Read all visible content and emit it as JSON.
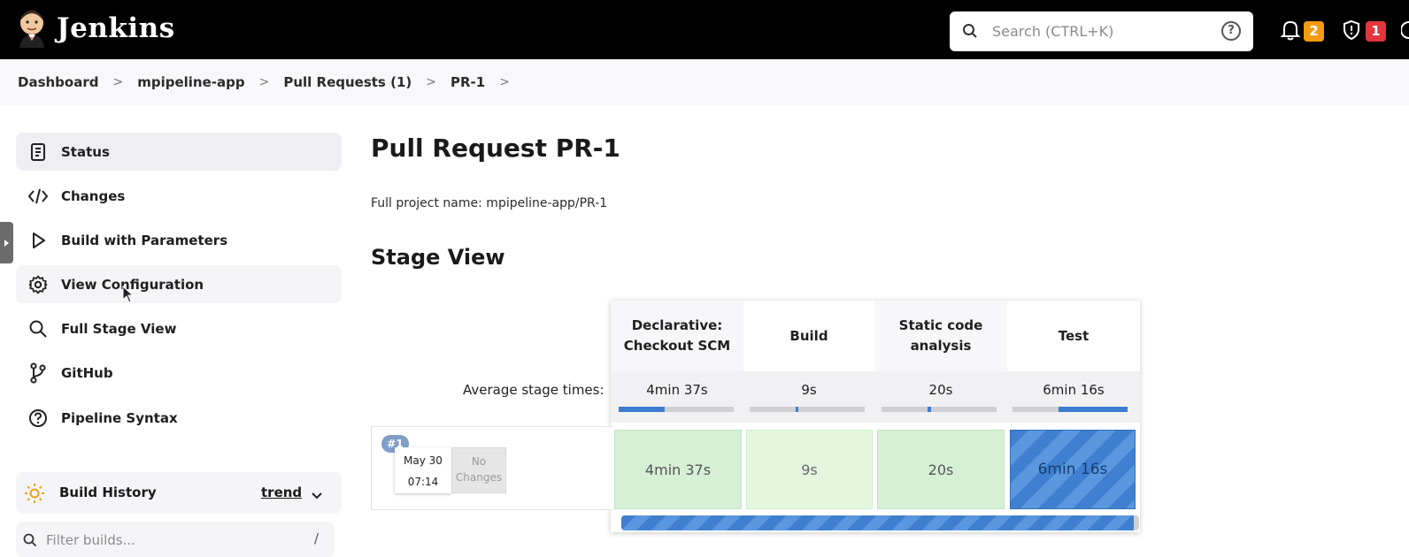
{
  "header": {
    "app_title": "Jenkins",
    "search_placeholder": "Search (CTRL+K)",
    "help_glyph": "?",
    "notifications_count": "2",
    "security_count": "1",
    "colors": {
      "bar": "#000000",
      "notification_badge": "#f39c12",
      "security_badge": "#e0363c"
    }
  },
  "breadcrumb": {
    "items": [
      "Dashboard",
      "mpipeline-app",
      "Pull Requests (1)",
      "PR-1"
    ],
    "separator": ">"
  },
  "sidebar": {
    "items": [
      {
        "label": "Status",
        "icon": "document-icon"
      },
      {
        "label": "Changes",
        "icon": "code-icon"
      },
      {
        "label": "Build with Parameters",
        "icon": "play-icon"
      },
      {
        "label": "View Configuration",
        "icon": "gear-icon"
      },
      {
        "label": "Full Stage View",
        "icon": "search-icon"
      },
      {
        "label": "GitHub",
        "icon": "branch-icon"
      },
      {
        "label": "Pipeline Syntax",
        "icon": "help-circle-icon"
      }
    ],
    "build_history": {
      "title": "Build History",
      "trend": "trend"
    },
    "filter_placeholder": "Filter builds...",
    "filter_shortcut": "/"
  },
  "main": {
    "title": "Pull Request PR-1",
    "full_name": "Full project name: mpipeline-app/PR-1",
    "stage_view_title": "Stage View"
  },
  "stage_view": {
    "average_label": "Average stage times:",
    "stages": [
      {
        "name_line1": "Declarative:",
        "name_line2": "Checkout SCM",
        "avg": "4min 37s",
        "avg_fraction": 0.4
      },
      {
        "name_line1": "Build",
        "name_line2": "",
        "avg": "9s",
        "avg_fraction": 0.02
      },
      {
        "name_line1": "Static code",
        "name_line2": "analysis",
        "avg": "20s",
        "avg_fraction": 0.03
      },
      {
        "name_line1": "Test",
        "name_line2": "",
        "avg": "6min 16s",
        "avg_fraction": 0.6
      }
    ],
    "build": {
      "number": "#1",
      "date": "May 30",
      "time": "07:14",
      "changes_line1": "No",
      "changes_line2": "Changes",
      "stage_times": [
        "4min 37s",
        "9s",
        "20s",
        "6min 16s"
      ],
      "stage_states": [
        "success",
        "success",
        "success",
        "running"
      ],
      "progress_fraction": 0.99
    }
  }
}
